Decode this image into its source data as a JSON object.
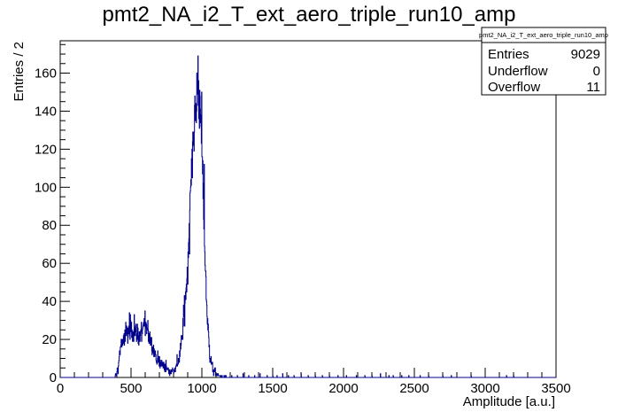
{
  "chart_data": {
    "type": "histogram",
    "title": "pmt2_NA_i2_T_ext_aero_triple_run10_amp",
    "xlabel": "Amplitude [a.u.]",
    "ylabel": "Entries / 2",
    "xlim": [
      0,
      3500
    ],
    "ylim": [
      0,
      177
    ],
    "bin_width": 2,
    "x_ticks": [
      0,
      500,
      1000,
      1500,
      2000,
      2500,
      3000,
      3500
    ],
    "y_ticks": [
      0,
      20,
      40,
      60,
      80,
      100,
      120,
      140,
      160
    ],
    "line_color": "#00008b",
    "stats_box": {
      "name": "pmt2_NA_i2_T_ext_aero_triple_run10_amp",
      "placement": "top-right",
      "rows": [
        {
          "label": "Entries",
          "value": "9029"
        },
        {
          "label": "Underflow",
          "value": "0"
        },
        {
          "label": "Overflow",
          "value": "11"
        }
      ]
    },
    "profile": {
      "x": [
        380,
        400,
        410,
        420,
        430,
        440,
        460,
        480,
        500,
        520,
        540,
        560,
        580,
        600,
        620,
        640,
        660,
        680,
        700,
        720,
        740,
        760,
        780,
        800,
        820,
        840,
        860,
        880,
        900,
        920,
        940,
        960,
        970,
        980,
        990,
        1000,
        1010,
        1020,
        1040,
        1060,
        1080,
        1100,
        1120,
        1140,
        1160,
        1200
      ],
      "y": [
        0,
        2,
        6,
        12,
        17,
        20,
        22,
        24,
        25,
        24,
        23,
        22,
        24,
        26,
        24,
        20,
        14,
        10,
        8,
        7,
        6,
        4,
        3,
        4,
        6,
        10,
        20,
        38,
        58,
        95,
        130,
        140,
        155,
        148,
        135,
        120,
        95,
        68,
        28,
        10,
        4,
        2,
        1,
        0.6,
        0.3,
        0.1
      ]
    },
    "spikes": [
      {
        "x": 489,
        "y": 34
      },
      {
        "x": 522,
        "y": 33
      },
      {
        "x": 598,
        "y": 35
      },
      {
        "x": 972,
        "y": 169
      },
      {
        "x": 964,
        "y": 160
      },
      {
        "x": 948,
        "y": 143
      },
      {
        "x": 998,
        "y": 150
      },
      {
        "x": 1016,
        "y": 112
      }
    ],
    "sparse_tail": [
      {
        "x": 1210,
        "y": 1
      },
      {
        "x": 1250,
        "y": 1
      },
      {
        "x": 1290,
        "y": 2
      },
      {
        "x": 1330,
        "y": 1
      },
      {
        "x": 1372,
        "y": 1
      },
      {
        "x": 1410,
        "y": 2
      },
      {
        "x": 1460,
        "y": 1
      },
      {
        "x": 1500,
        "y": 1
      },
      {
        "x": 1530,
        "y": 1
      },
      {
        "x": 1570,
        "y": 2
      },
      {
        "x": 1610,
        "y": 1
      },
      {
        "x": 1650,
        "y": 1
      },
      {
        "x": 1700,
        "y": 2
      },
      {
        "x": 1750,
        "y": 1
      },
      {
        "x": 1800,
        "y": 1
      },
      {
        "x": 1850,
        "y": 1
      },
      {
        "x": 1900,
        "y": 1
      },
      {
        "x": 1960,
        "y": 1
      },
      {
        "x": 2020,
        "y": 1
      },
      {
        "x": 2090,
        "y": 1
      },
      {
        "x": 2150,
        "y": 1
      },
      {
        "x": 2200,
        "y": 1
      },
      {
        "x": 2260,
        "y": 2
      },
      {
        "x": 2320,
        "y": 1
      },
      {
        "x": 2350,
        "y": 1
      },
      {
        "x": 2410,
        "y": 1
      },
      {
        "x": 2460,
        "y": 1
      },
      {
        "x": 2540,
        "y": 1
      },
      {
        "x": 2600,
        "y": 1
      },
      {
        "x": 2700,
        "y": 1
      },
      {
        "x": 2760,
        "y": 1
      },
      {
        "x": 2900,
        "y": 1
      },
      {
        "x": 3150,
        "y": 1
      },
      {
        "x": 3200,
        "y": 1
      }
    ]
  }
}
